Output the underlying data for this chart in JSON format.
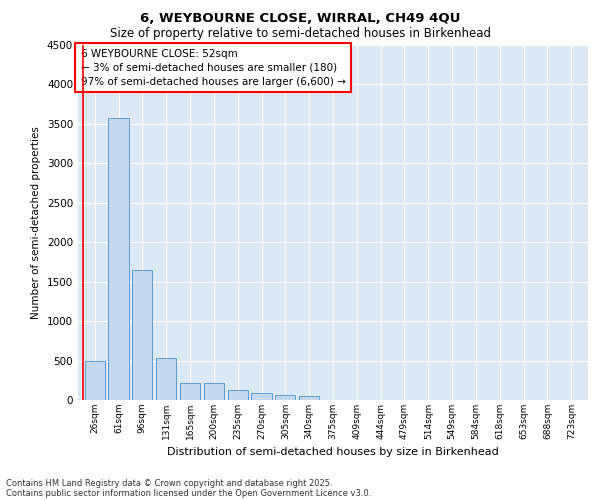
{
  "title1": "6, WEYBOURNE CLOSE, WIRRAL, CH49 4QU",
  "title2": "Size of property relative to semi-detached houses in Birkenhead",
  "xlabel": "Distribution of semi-detached houses by size in Birkenhead",
  "ylabel": "Number of semi-detached properties",
  "categories": [
    "26sqm",
    "61sqm",
    "96sqm",
    "131sqm",
    "165sqm",
    "200sqm",
    "235sqm",
    "270sqm",
    "305sqm",
    "340sqm",
    "375sqm",
    "409sqm",
    "444sqm",
    "479sqm",
    "514sqm",
    "549sqm",
    "584sqm",
    "618sqm",
    "653sqm",
    "688sqm",
    "723sqm"
  ],
  "values": [
    500,
    3580,
    1650,
    530,
    220,
    210,
    130,
    95,
    60,
    50,
    0,
    0,
    0,
    0,
    0,
    0,
    0,
    0,
    0,
    0,
    0
  ],
  "bar_color": "#c5d8ed",
  "bar_edge_color": "#5b9bd5",
  "annotation_title": "6 WEYBOURNE CLOSE: 52sqm",
  "annotation_line1": "← 3% of semi-detached houses are smaller (180)",
  "annotation_line2": "97% of semi-detached houses are larger (6,600) →",
  "footnote1": "Contains HM Land Registry data © Crown copyright and database right 2025.",
  "footnote2": "Contains public sector information licensed under the Open Government Licence v3.0.",
  "ylim": [
    0,
    4500
  ],
  "yticks": [
    0,
    500,
    1000,
    1500,
    2000,
    2500,
    3000,
    3500,
    4000,
    4500
  ],
  "plot_background": "#dde8f5",
  "fig_background": "#ffffff"
}
